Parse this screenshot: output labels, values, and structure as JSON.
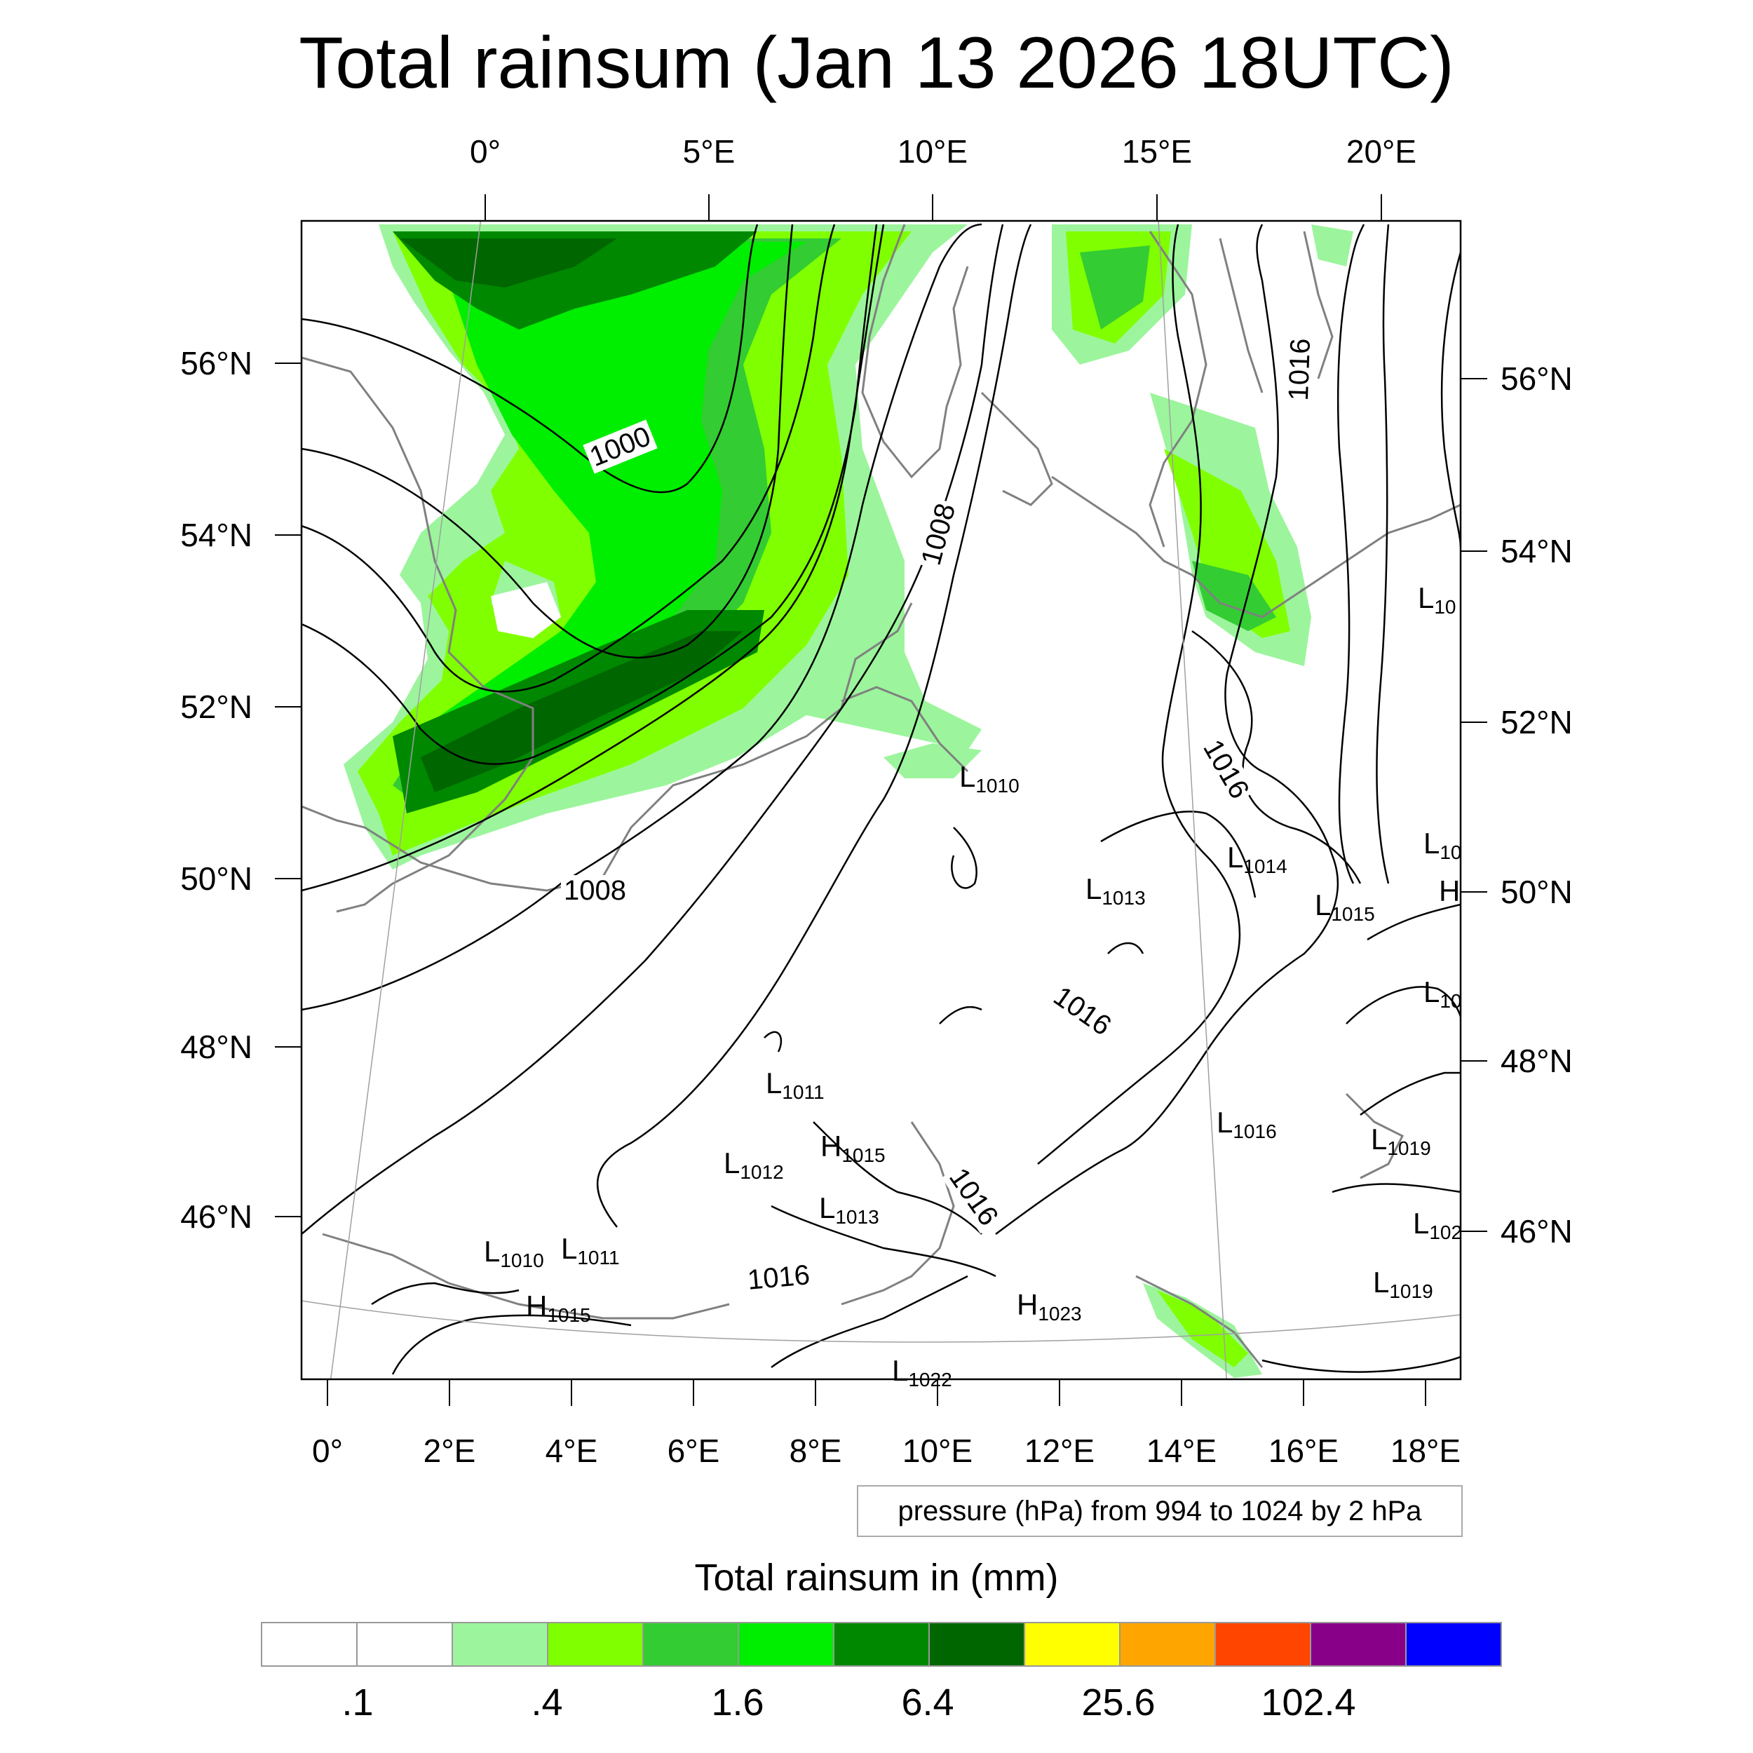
{
  "title": "Total rainsum (Jan 13 2026 18UTC)",
  "top_lon_labels": [
    "0°",
    "5°E",
    "10°E",
    "15°E",
    "20°E"
  ],
  "bottom_lon_labels": [
    "0°",
    "2°E",
    "4°E",
    "6°E",
    "8°E",
    "10°E",
    "12°E",
    "14°E",
    "16°E",
    "18°E"
  ],
  "left_lat_labels": [
    "56°N",
    "54°N",
    "52°N",
    "50°N",
    "48°N",
    "46°N"
  ],
  "right_lat_labels": [
    "56°N",
    "54°N",
    "52°N",
    "50°N",
    "48°N",
    "46°N"
  ],
  "contour_labels": [
    "1000",
    "1008",
    "1008",
    "1016",
    "1016",
    "1016",
    "1016",
    "1016"
  ],
  "pressure_centers": [
    {
      "type": "L",
      "value": "1010"
    },
    {
      "type": "L",
      "value": "1013"
    },
    {
      "type": "L",
      "value": "1014"
    },
    {
      "type": "L",
      "value": "1015"
    },
    {
      "type": "L",
      "value": "1011"
    },
    {
      "type": "L",
      "value": "1012"
    },
    {
      "type": "H",
      "value": "1015"
    },
    {
      "type": "L",
      "value": "1013"
    },
    {
      "type": "L",
      "value": "1016"
    },
    {
      "type": "L",
      "value": "1019"
    },
    {
      "type": "L",
      "value": "1010"
    },
    {
      "type": "L",
      "value": "1011"
    },
    {
      "type": "H",
      "value": "1015"
    },
    {
      "type": "H",
      "value": "1023"
    },
    {
      "type": "L",
      "value": "1019"
    },
    {
      "type": "L",
      "value": "102"
    },
    {
      "type": "L",
      "value": "10"
    },
    {
      "type": "L",
      "value": "10"
    },
    {
      "type": "L",
      "value": "10"
    },
    {
      "type": "H",
      "value": ""
    },
    {
      "type": "L",
      "value": "1022"
    }
  ],
  "pressure_note": "pressure (hPa) from 994 to 1024 by 2 hPa",
  "colorbar": {
    "title": "Total rainsum in (mm)",
    "colors": [
      "#ffffff",
      "#ffffff",
      "#9cf59c",
      "#80ff00",
      "#33cc33",
      "#00ee00",
      "#008800",
      "#006600",
      "#ffff00",
      "#ffa500",
      "#ff4500",
      "#880088",
      "#0000ff"
    ],
    "tick_labels": [
      ".1",
      ".4",
      "1.6",
      "6.4",
      "25.6",
      "102.4"
    ]
  },
  "colors": {
    "light_green": "#9cf59c",
    "lime": "#80ff00",
    "medium_green": "#33cc33",
    "bright_green": "#00ee00",
    "dark_green": "#008800",
    "darkest_green": "#006600",
    "coastline": "#808080",
    "isobar": "#000000"
  }
}
